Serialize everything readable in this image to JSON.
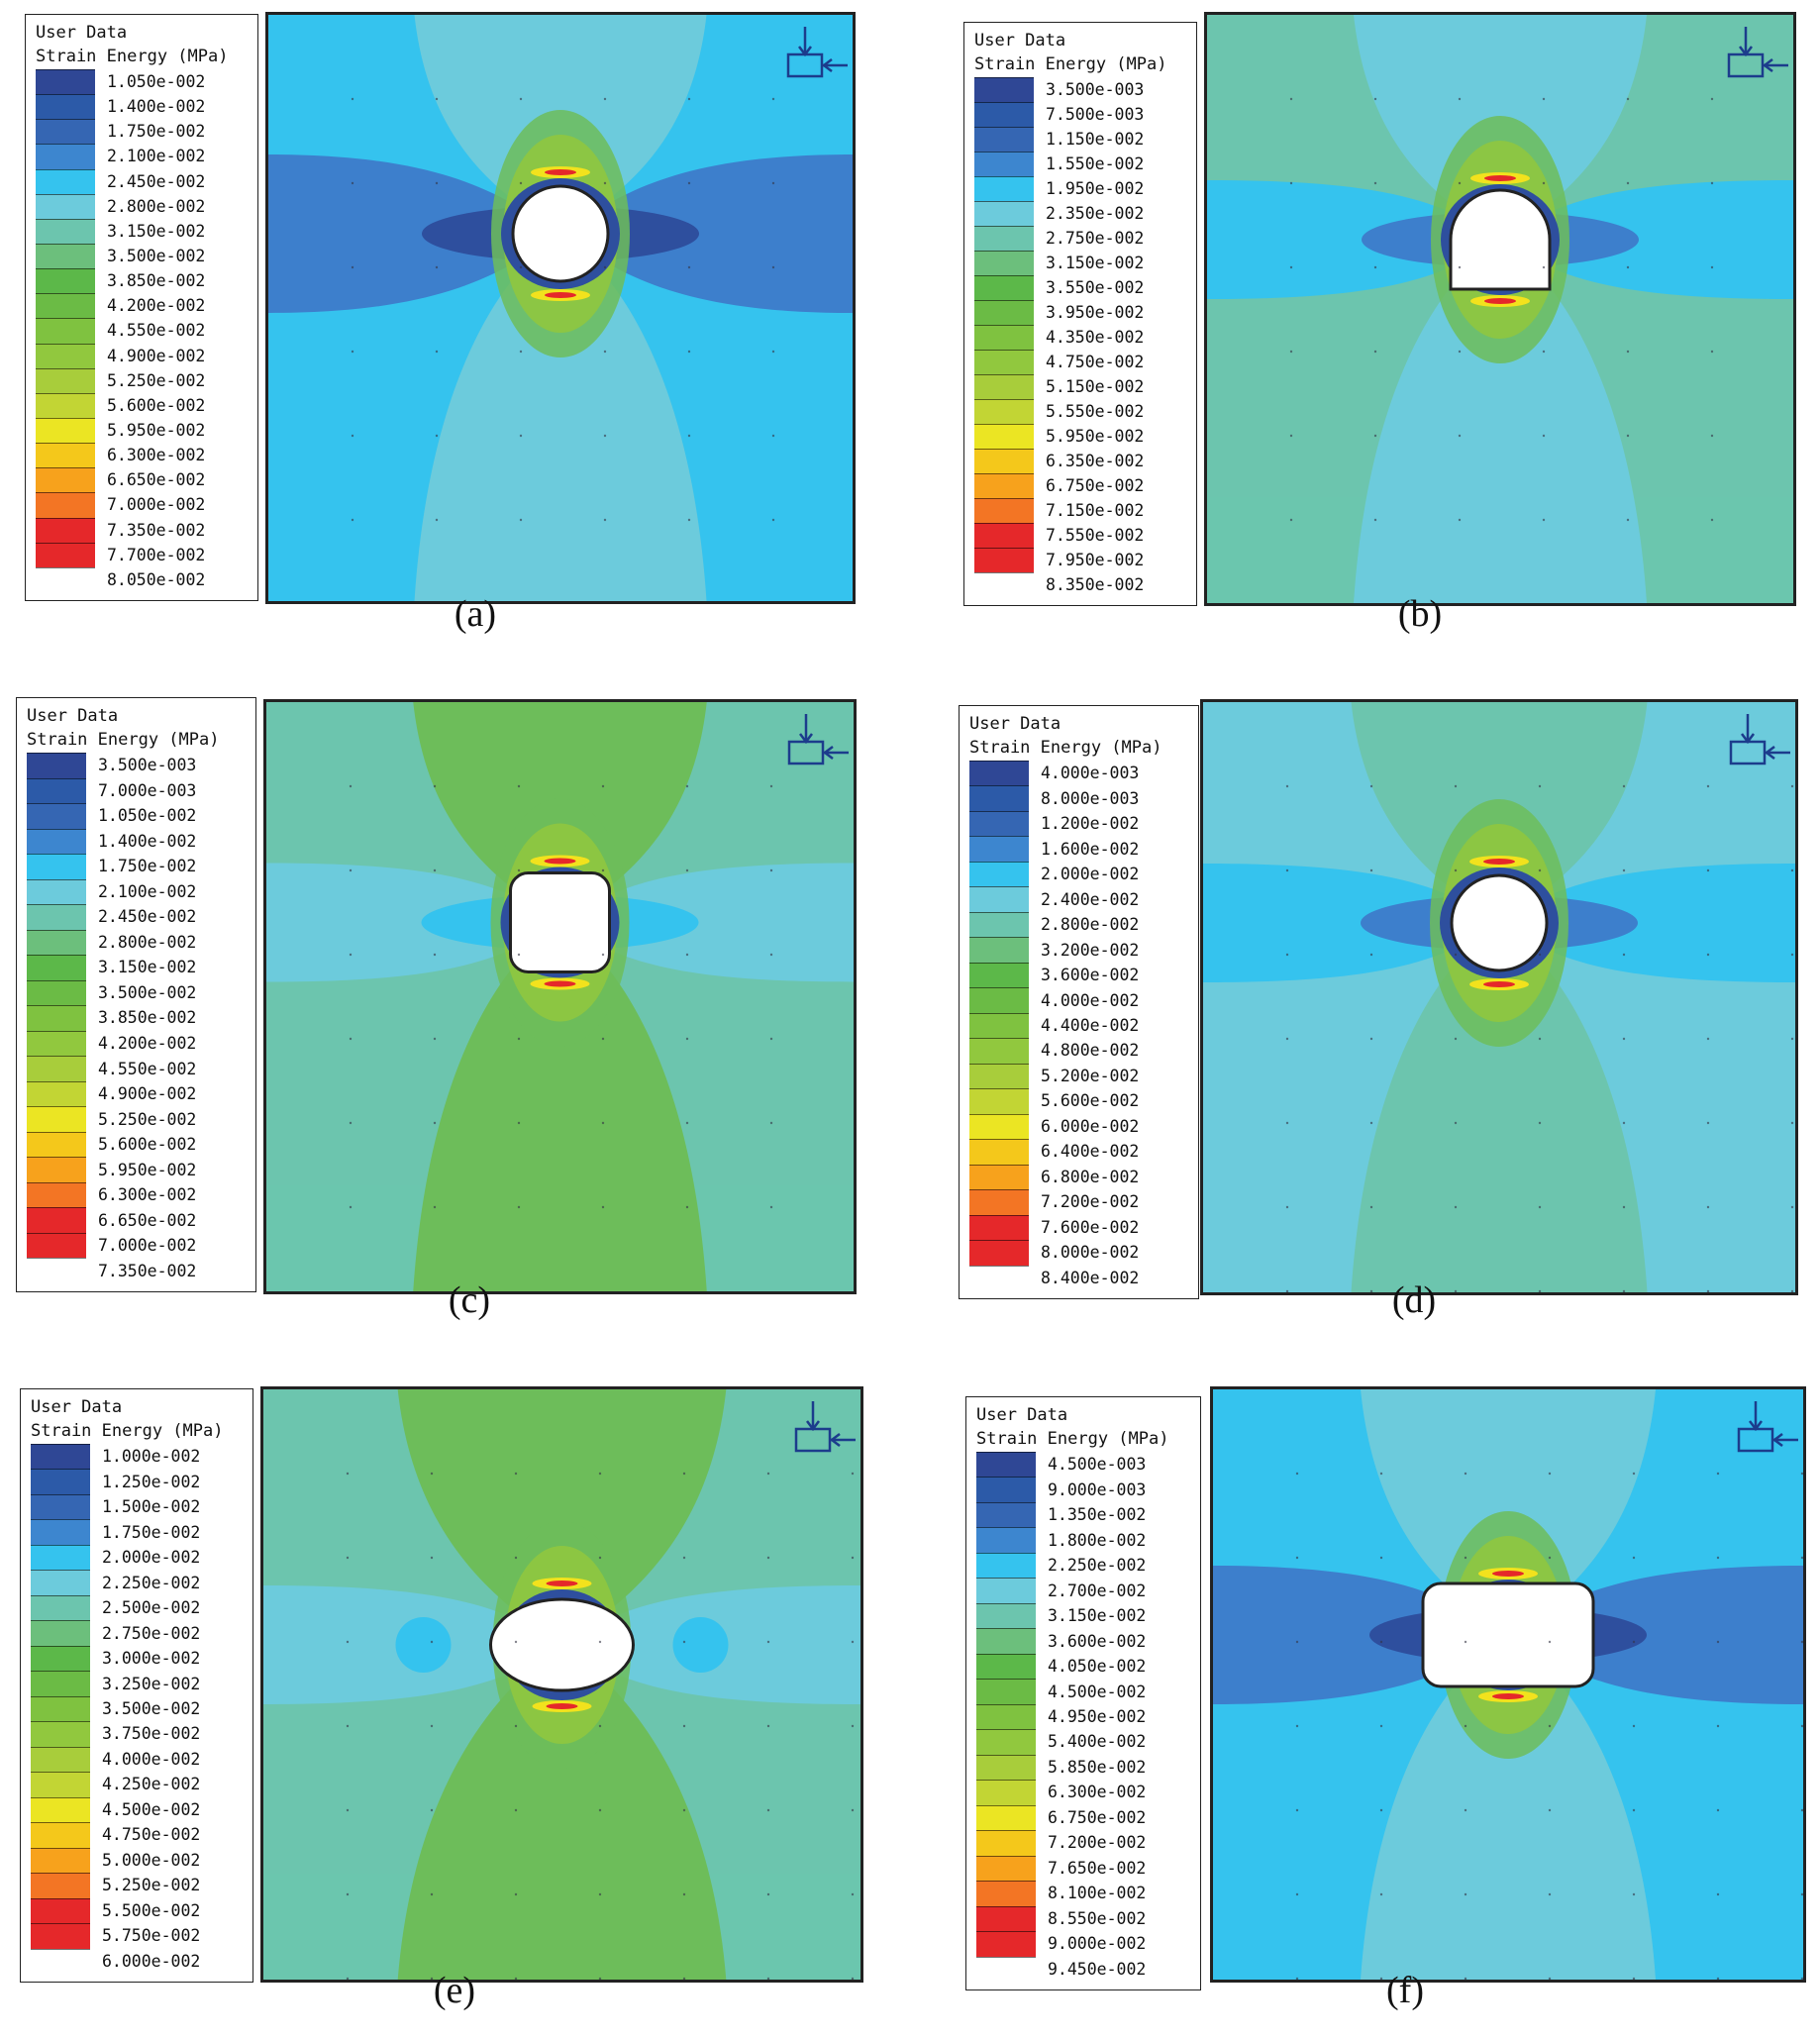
{
  "legend_title_line1": "User Data",
  "legend_title_line2": "Strain Energy (MPa)",
  "colors": {
    "deep_blue": "#2e4f9e",
    "mid_blue": "#3d7fcc",
    "sky_blue": "#35c3ee",
    "pale_cyan": "#6ccbdc",
    "teal_green": "#6cc5ae",
    "green": "#6dbd5a",
    "yellow": "#f2e21d",
    "orange": "#f68c1f",
    "red": "#e5282a"
  },
  "legend_colors": [
    "#2f4795",
    "#2c5aa8",
    "#3566b3",
    "#3d86cf",
    "#35c3ee",
    "#6ccbdc",
    "#6cc5ae",
    "#6cbf7c",
    "#5cb849",
    "#6bbb45",
    "#7fc240",
    "#91c83e",
    "#a8cd3b",
    "#c2d534",
    "#ebe523",
    "#f4c81b",
    "#f7a21c",
    "#f37524",
    "#e5282a"
  ],
  "panels": [
    {
      "caption": "(a)",
      "labels": [
        "1.050e-002",
        "1.400e-002",
        "1.750e-002",
        "2.100e-002",
        "2.450e-002",
        "2.800e-002",
        "3.150e-002",
        "3.500e-002",
        "3.850e-002",
        "4.200e-002",
        "4.550e-002",
        "4.900e-002",
        "5.250e-002",
        "5.600e-002",
        "5.950e-002",
        "6.300e-002",
        "6.650e-002",
        "7.000e-002",
        "7.350e-002",
        "7.700e-002",
        "8.050e-002"
      ],
      "background": "sky_blue",
      "opening_shape": "circle"
    },
    {
      "caption": "(b)",
      "labels": [
        "3.500e-003",
        "7.500e-003",
        "1.150e-002",
        "1.550e-002",
        "1.950e-002",
        "2.350e-002",
        "2.750e-002",
        "3.150e-002",
        "3.550e-002",
        "3.950e-002",
        "4.350e-002",
        "4.750e-002",
        "5.150e-002",
        "5.550e-002",
        "5.950e-002",
        "6.350e-002",
        "6.750e-002",
        "7.150e-002",
        "7.550e-002",
        "7.950e-002",
        "8.350e-002"
      ],
      "background": "teal_green",
      "opening_shape": "horseshoe"
    },
    {
      "caption": "(c)",
      "labels": [
        "3.500e-003",
        "7.000e-003",
        "1.050e-002",
        "1.400e-002",
        "1.750e-002",
        "2.100e-002",
        "2.450e-002",
        "2.800e-002",
        "3.150e-002",
        "3.500e-002",
        "3.850e-002",
        "4.200e-002",
        "4.550e-002",
        "4.900e-002",
        "5.250e-002",
        "5.600e-002",
        "5.950e-002",
        "6.300e-002",
        "6.650e-002",
        "7.000e-002",
        "7.350e-002"
      ],
      "background": "teal_green",
      "opening_shape": "rounded-square"
    },
    {
      "caption": "(d)",
      "labels": [
        "4.000e-003",
        "8.000e-003",
        "1.200e-002",
        "1.600e-002",
        "2.000e-002",
        "2.400e-002",
        "2.800e-002",
        "3.200e-002",
        "3.600e-002",
        "4.000e-002",
        "4.400e-002",
        "4.800e-002",
        "5.200e-002",
        "5.600e-002",
        "6.000e-002",
        "6.400e-002",
        "6.800e-002",
        "7.200e-002",
        "7.600e-002",
        "8.000e-002",
        "8.400e-002"
      ],
      "background": "pale_cyan",
      "opening_shape": "circle"
    },
    {
      "caption": "(e)",
      "labels": [
        "1.000e-002",
        "1.250e-002",
        "1.500e-002",
        "1.750e-002",
        "2.000e-002",
        "2.250e-002",
        "2.500e-002",
        "2.750e-002",
        "3.000e-002",
        "3.250e-002",
        "3.500e-002",
        "3.750e-002",
        "4.000e-002",
        "4.250e-002",
        "4.500e-002",
        "4.750e-002",
        "5.000e-002",
        "5.250e-002",
        "5.500e-002",
        "5.750e-002",
        "6.000e-002"
      ],
      "background": "teal_green",
      "opening_shape": "ellipse"
    },
    {
      "caption": "(f)",
      "labels": [
        "4.500e-003",
        "9.000e-003",
        "1.350e-002",
        "1.800e-002",
        "2.250e-002",
        "2.700e-002",
        "3.150e-002",
        "3.600e-002",
        "4.050e-002",
        "4.500e-002",
        "4.950e-002",
        "5.400e-002",
        "5.850e-002",
        "6.300e-002",
        "6.750e-002",
        "7.200e-002",
        "7.650e-002",
        "8.100e-002",
        "8.550e-002",
        "9.000e-002",
        "9.450e-002"
      ],
      "background": "sky_blue",
      "opening_shape": "rounded-rectangle"
    }
  ]
}
